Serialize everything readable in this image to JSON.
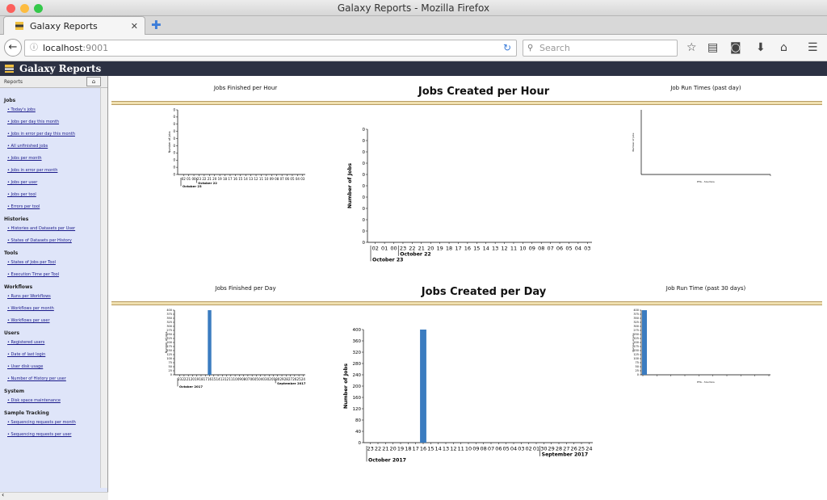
{
  "window": {
    "title": "Galaxy Reports - Mozilla Firefox"
  },
  "tab": {
    "label": "Galaxy Reports"
  },
  "nav": {
    "url_host": "localhost",
    "url_port": ":9001",
    "search_placeholder": "Search"
  },
  "app": {
    "title": "Galaxy Reports"
  },
  "sidebar": {
    "title": "Reports",
    "sections": [
      {
        "label": "Jobs",
        "items": [
          "Today's jobs",
          "Jobs per day this month",
          "Jobs in error per day this month",
          "All unfinished jobs",
          "Jobs per month",
          "Jobs in error per month",
          "Jobs per user",
          "Jobs per tool",
          "Errors per tool"
        ]
      },
      {
        "label": "Histories",
        "items": [
          "Histories and Datasets per User",
          "States of Datasets per History"
        ]
      },
      {
        "label": "Tools",
        "items": [
          "States of Jobs per Tool",
          "Execution Time per Tool"
        ]
      },
      {
        "label": "Workflows",
        "items": [
          "Runs per Workflows",
          "Workflows per month",
          "Workflows per user"
        ]
      },
      {
        "label": "Users",
        "items": [
          "Registered users",
          "Date of last login",
          "User disk usage",
          "Number of History per user"
        ]
      },
      {
        "label": "System",
        "items": [
          "Disk space maintenance"
        ]
      },
      {
        "label": "Sample Tracking",
        "items": [
          "Sequencing requests per month",
          "Sequencing requests per user"
        ]
      }
    ]
  },
  "charts": {
    "jobs_finished_hour_title": "Jobs Finished per Hour",
    "jobs_created_hour_title": "Jobs Created per Hour",
    "job_run_times_title": "Job Run Times (past day)",
    "jobs_finished_day_title": "Jobs Finished per Day",
    "jobs_created_day_title": "Jobs Created per Day",
    "job_run_time_30_title": "Job Run Time (past 30 days)"
  },
  "chart_data": [
    {
      "type": "bar",
      "title": "Jobs Finished per Hour",
      "ylabel": "Number of jobs",
      "categories": [
        "02",
        "01",
        "00",
        "23",
        "22",
        "21",
        "20",
        "19",
        "18",
        "17",
        "16",
        "15",
        "14",
        "13",
        "12",
        "11",
        "10",
        "09",
        "08",
        "07",
        "06",
        "05",
        "04",
        "03"
      ],
      "values": [
        0,
        0,
        0,
        0,
        0,
        0,
        0,
        0,
        0,
        0,
        0,
        0,
        0,
        0,
        0,
        0,
        0,
        0,
        0,
        0,
        0,
        0,
        0,
        0
      ],
      "yticks": [
        "0",
        "0",
        "0",
        "0",
        "0",
        "0",
        "0",
        "0",
        "0",
        "0"
      ],
      "groups": [
        "October 23",
        "October 22"
      ]
    },
    {
      "type": "bar",
      "title": "Jobs Created per Hour",
      "ylabel": "Number of Jobs",
      "categories": [
        "02",
        "01",
        "00",
        "23",
        "22",
        "21",
        "20",
        "19",
        "18",
        "17",
        "16",
        "15",
        "14",
        "13",
        "12",
        "11",
        "10",
        "09",
        "08",
        "07",
        "06",
        "05",
        "04",
        "03"
      ],
      "values": [
        0,
        0,
        0,
        0,
        0,
        0,
        0,
        0,
        0,
        0,
        0,
        0,
        0,
        0,
        0,
        0,
        0,
        0,
        0,
        0,
        0,
        0,
        0,
        0
      ],
      "yticks": [
        "0",
        "0",
        "0",
        "0",
        "0",
        "0",
        "0",
        "0",
        "0",
        "0",
        "0"
      ],
      "groups": [
        "October 23",
        "October 22"
      ]
    },
    {
      "type": "bar",
      "title": "Job Run Times (past day)",
      "ylabel": "Number of jobs",
      "xlabel": "ETA - hrs:mins",
      "values": []
    },
    {
      "type": "bar",
      "title": "Jobs Finished per Day",
      "ylabel": "Number of jobs",
      "categories": [
        "23",
        "22",
        "21",
        "20",
        "19",
        "18",
        "17",
        "16",
        "15",
        "14",
        "13",
        "12",
        "11",
        "10",
        "09",
        "08",
        "07",
        "06",
        "05",
        "04",
        "03",
        "02",
        "01",
        "30",
        "29",
        "28",
        "27",
        "26",
        "25",
        "24"
      ],
      "values": [
        0,
        0,
        0,
        0,
        0,
        0,
        0,
        400,
        0,
        0,
        0,
        0,
        0,
        0,
        0,
        0,
        0,
        0,
        0,
        0,
        0,
        0,
        0,
        0,
        0,
        0,
        0,
        0,
        0,
        0
      ],
      "ylim": [
        0,
        400
      ],
      "groups": [
        "October 2017",
        "September 2017"
      ]
    },
    {
      "type": "bar",
      "title": "Jobs Created per Day",
      "ylabel": "Number of Jobs",
      "categories": [
        "23",
        "22",
        "21",
        "20",
        "19",
        "18",
        "17",
        "16",
        "15",
        "14",
        "13",
        "12",
        "11",
        "10",
        "09",
        "08",
        "07",
        "06",
        "05",
        "04",
        "03",
        "02",
        "01",
        "30",
        "29",
        "28",
        "27",
        "26",
        "25",
        "24"
      ],
      "values": [
        0,
        0,
        0,
        0,
        0,
        0,
        0,
        400,
        0,
        0,
        0,
        0,
        0,
        0,
        0,
        0,
        0,
        0,
        0,
        0,
        0,
        0,
        0,
        0,
        0,
        0,
        0,
        0,
        0,
        0
      ],
      "ylim": [
        0,
        400
      ],
      "yticks": [
        "0",
        "40",
        "80",
        "120",
        "160",
        "200",
        "240",
        "280",
        "320",
        "360",
        "400"
      ],
      "groups": [
        "October 2017",
        "September 2017"
      ]
    },
    {
      "type": "bar",
      "title": "Job Run Time (past 30 days)",
      "ylabel": "Number of jobs",
      "xlabel": "ETA - hrs:mins",
      "values": [
        400
      ],
      "ylim": [
        0,
        400
      ]
    }
  ]
}
